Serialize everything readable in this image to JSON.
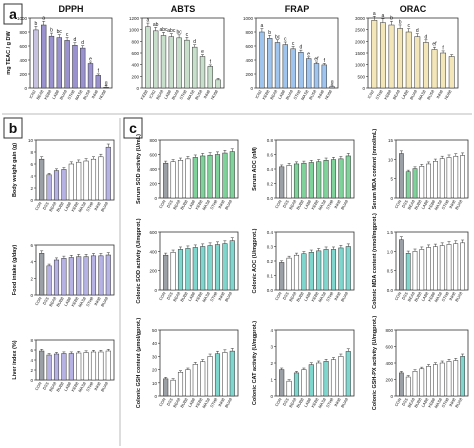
{
  "panel_labels": [
    "a",
    "b",
    "c"
  ],
  "chart_data": [
    {
      "panel": "a",
      "type": "bar",
      "title": "DPPH",
      "ylabel": "mg TEAC / g DW",
      "ylim": [
        0,
        1000
      ],
      "yticks": [
        "1000",
        "800",
        "600",
        "400",
        "200",
        "0"
      ],
      "categories": [
        "ICN2",
        "BEA8",
        "KEB8",
        "LAB8",
        "BUA8",
        "STH8",
        "MAS8",
        "BUS8",
        "INH8",
        "NU68"
      ],
      "values": [
        830,
        900,
        740,
        720,
        680,
        610,
        570,
        350,
        180,
        10
      ],
      "labels": [
        "b",
        "a",
        "b",
        "bc",
        "c",
        "d",
        "d",
        "e",
        "f",
        "g"
      ],
      "colors": [
        "#c7c2e0",
        "#9a92cf",
        "#9a92cf",
        "#9a92cf",
        "#9a92cf",
        "#9a92cf",
        "#9a92cf",
        "#9a92cf",
        "#9a92cf",
        "#9a92cf"
      ]
    },
    {
      "panel": "a",
      "type": "bar",
      "title": "ABTS",
      "ylim": [
        0,
        1200
      ],
      "yticks": [
        "1200",
        "1000",
        "800",
        "600",
        "400",
        "200",
        "0"
      ],
      "categories": [
        "KEB8",
        "ICN2",
        "BEA8",
        "LAB8",
        "BUA8",
        "STH8",
        "MAS8",
        "BUS8",
        "INH8",
        "NU68"
      ],
      "values": [
        1050,
        980,
        900,
        880,
        860,
        820,
        700,
        540,
        370,
        140
      ],
      "labels": [
        "a",
        "ab",
        "abc",
        "abc",
        "bc",
        "c",
        "d",
        "e",
        "f",
        ""
      ],
      "colors": [
        "#c8dfcc",
        "#c8dfcc",
        "#c8dfcc",
        "#c8dfcc",
        "#c8dfcc",
        "#c8dfcc",
        "#c8dfcc",
        "#c8dfcc",
        "#c8dfcc",
        "#c8dfcc"
      ]
    },
    {
      "panel": "a",
      "type": "bar",
      "title": "FRAP",
      "ylim": [
        0,
        1000
      ],
      "yticks": [
        "1000",
        "800",
        "600",
        "400",
        "200",
        "0"
      ],
      "categories": [
        "ICN2",
        "KEB8",
        "BEA8",
        "LAB8",
        "BUA8",
        "STH8",
        "MAS8",
        "BUS8",
        "INH8",
        "NU68"
      ],
      "values": [
        800,
        710,
        650,
        620,
        560,
        510,
        420,
        350,
        330,
        20
      ],
      "labels": [
        "a",
        "b",
        "bc",
        "c",
        "c",
        "d",
        "e",
        "ef",
        "f",
        "g"
      ],
      "colors": [
        "#9fc4ee",
        "#9fc4ee",
        "#9fc4ee",
        "#9fc4ee",
        "#9fc4ee",
        "#9fc4ee",
        "#9fc4ee",
        "#9fc4ee",
        "#9fc4ee",
        "#9fc4ee"
      ]
    },
    {
      "panel": "a",
      "type": "bar",
      "title": "ORAC",
      "ylim": [
        0,
        3000
      ],
      "yticks": [
        "3000",
        "2500",
        "2000",
        "1500",
        "1000",
        "500",
        "0"
      ],
      "categories": [
        "ICN2",
        "STH8",
        "KEB8",
        "BEA8",
        "LAB8",
        "BUA8",
        "MAS8",
        "BUS8",
        "INH8",
        "NU68"
      ],
      "values": [
        2900,
        2800,
        2700,
        2550,
        2400,
        2200,
        1950,
        1650,
        1500,
        1350
      ],
      "labels": [
        "a",
        "a",
        "b",
        "b",
        "c",
        "d",
        "d",
        "ef",
        "f",
        ""
      ],
      "colors": [
        "#f3e6b9",
        "#f3e6b9",
        "#f3e6b9",
        "#f3e6b9",
        "#f3e6b9",
        "#f3e6b9",
        "#f3e6b9",
        "#f3e6b9",
        "#f3e6b9",
        "#f3e6b9"
      ]
    },
    {
      "panel": "b",
      "type": "bar",
      "ylabel": "Body weight gain (g)",
      "ylim": [
        0,
        10
      ],
      "yticks": [
        "10",
        "8",
        "6",
        "4",
        "2",
        "0"
      ],
      "categories": [
        "CON",
        "DSS",
        "BEA8",
        "BUB8",
        "LAB8",
        "KEB8",
        "MAS8",
        "STH8",
        "INH8",
        "BUA8"
      ],
      "values": [
        6.8,
        4.2,
        4.9,
        5.1,
        6.0,
        6.3,
        6.5,
        6.8,
        7.2,
        8.8
      ],
      "colors": [
        "#9aa0a6",
        "#b6b3e4",
        "#b6b3e4",
        "#b6b3e4",
        "#ffffff",
        "#ffffff",
        "#ffffff",
        "#ffffff",
        "#ffffff",
        "#b6b3e4"
      ]
    },
    {
      "panel": "b",
      "type": "bar",
      "ylabel": "Food intake (g/day)",
      "ylim": [
        0,
        6
      ],
      "yticks": [
        "6",
        "4",
        "2",
        "0"
      ],
      "categories": [
        "CON",
        "DSS",
        "BEA8",
        "BUB8",
        "LAB8",
        "KEB8",
        "MAS8",
        "STH8",
        "INH8",
        "BUA8"
      ],
      "values": [
        5.0,
        3.5,
        4.2,
        4.4,
        4.5,
        4.6,
        4.6,
        4.7,
        4.7,
        4.8
      ],
      "colors": [
        "#9aa0a6",
        "#b6b3e4",
        "#b6b3e4",
        "#b6b3e4",
        "#b6b3e4",
        "#b6b3e4",
        "#b6b3e4",
        "#b6b3e4",
        "#b6b3e4",
        "#b6b3e4"
      ]
    },
    {
      "panel": "b",
      "type": "bar",
      "ylabel": "Liver index (%)",
      "ylim": [
        0,
        8
      ],
      "yticks": [
        "8",
        "6",
        "4",
        "2",
        "0"
      ],
      "categories": [
        "CON",
        "DSS",
        "BEA8",
        "BUB8",
        "LAB8",
        "KEB8",
        "MAS8",
        "STH8",
        "INH8",
        "BUA8"
      ],
      "values": [
        5.8,
        5.0,
        5.2,
        5.3,
        5.3,
        5.4,
        5.5,
        5.6,
        5.6,
        5.8
      ],
      "colors": [
        "#9aa0a6",
        "#b6b3e4",
        "#b6b3e4",
        "#b6b3e4",
        "#b6b3e4",
        "#ffffff",
        "#ffffff",
        "#ffffff",
        "#ffffff",
        "#ffffff"
      ]
    },
    {
      "panel": "c",
      "type": "bar",
      "ylabel": "Serum SOD activity (U/mL)",
      "ylim": [
        0,
        800
      ],
      "yticks": [
        "800",
        "600",
        "400",
        "200",
        "0"
      ],
      "categories": [
        "CON",
        "DSS",
        "BEA8",
        "BUB8",
        "LAB8",
        "KEB8",
        "MAS8",
        "STH8",
        "INH8",
        "BUA8"
      ],
      "values": [
        480,
        500,
        520,
        540,
        560,
        580,
        590,
        600,
        620,
        640
      ],
      "colors": [
        "#9aa0a6",
        "#ffffff",
        "#ffffff",
        "#ffffff",
        "#7fd39a",
        "#7fd39a",
        "#7fd39a",
        "#7fd39a",
        "#7fd39a",
        "#7fd39a"
      ]
    },
    {
      "panel": "c",
      "type": "bar",
      "ylabel": "Serum AOC (nM)",
      "ylim": [
        0,
        0.8
      ],
      "yticks": [
        "0.8",
        "0.6",
        "0.4",
        "0.2",
        "0.0"
      ],
      "categories": [
        "CON",
        "DSS",
        "BEA8",
        "BUB8",
        "LAB8",
        "KEB8",
        "MAS8",
        "STH8",
        "INH8",
        "BUA8"
      ],
      "values": [
        0.43,
        0.45,
        0.47,
        0.48,
        0.49,
        0.5,
        0.52,
        0.53,
        0.54,
        0.58
      ],
      "colors": [
        "#9aa0a6",
        "#ffffff",
        "#7fd39a",
        "#7fd39a",
        "#7fd39a",
        "#7fd39a",
        "#7fd39a",
        "#7fd39a",
        "#7fd39a",
        "#7fd39a"
      ]
    },
    {
      "panel": "c",
      "type": "bar",
      "ylabel": "Serum MDA content (nmol/mL)",
      "ylim": [
        0,
        15
      ],
      "yticks": [
        "15",
        "10",
        "5",
        "0"
      ],
      "categories": [
        "CON",
        "DSS",
        "BEA8",
        "BUB8",
        "LAB8",
        "KEB8",
        "MAS8",
        "STH8",
        "INH8",
        "BUA8"
      ],
      "values": [
        11.5,
        6.8,
        7.6,
        8.2,
        8.8,
        9.5,
        10.2,
        10.5,
        10.8,
        11.0
      ],
      "colors": [
        "#9aa0a6",
        "#7fd39a",
        "#7fd39a",
        "#ffffff",
        "#ffffff",
        "#ffffff",
        "#ffffff",
        "#ffffff",
        "#ffffff",
        "#ffffff"
      ]
    },
    {
      "panel": "c",
      "type": "bar",
      "ylabel": "Colonic SOD activity (U/mgprot.)",
      "ylim": [
        0,
        600
      ],
      "yticks": [
        "600",
        "400",
        "200",
        "0"
      ],
      "categories": [
        "CON",
        "DSS",
        "BEA8",
        "BUB8",
        "LAB8",
        "KEB8",
        "MAS8",
        "STH8",
        "INH8",
        "BUA8"
      ],
      "values": [
        360,
        390,
        420,
        430,
        440,
        450,
        460,
        470,
        480,
        510
      ],
      "colors": [
        "#9aa0a6",
        "#ffffff",
        "#7fd6cd",
        "#7fd6cd",
        "#7fd6cd",
        "#7fd6cd",
        "#7fd6cd",
        "#7fd6cd",
        "#7fd6cd",
        "#7fd6cd"
      ]
    },
    {
      "panel": "c",
      "type": "bar",
      "ylabel": "Colonic AOC (U/mgprot.)",
      "ylim": [
        0,
        0.4
      ],
      "yticks": [
        "0.4",
        "0.3",
        "0.2",
        "0.1",
        "0.0"
      ],
      "categories": [
        "CON",
        "DSS",
        "BEA8",
        "BUB8",
        "LAB8",
        "KEB8",
        "MAS8",
        "STH8",
        "INH8",
        "BUA8"
      ],
      "values": [
        0.19,
        0.22,
        0.24,
        0.25,
        0.26,
        0.27,
        0.28,
        0.28,
        0.29,
        0.3
      ],
      "colors": [
        "#9aa0a6",
        "#ffffff",
        "#ffffff",
        "#7fd6cd",
        "#7fd6cd",
        "#7fd6cd",
        "#7fd6cd",
        "#7fd6cd",
        "#7fd6cd",
        "#7fd6cd"
      ]
    },
    {
      "panel": "c",
      "type": "bar",
      "ylabel": "Colonic MDA content (nmol/mgprot.)",
      "ylim": [
        0,
        1.5
      ],
      "yticks": [
        "1.5",
        "1.0",
        "0.5",
        "0.0"
      ],
      "categories": [
        "CON",
        "DSS",
        "BEA8",
        "BUB8",
        "LAB8",
        "KEB8",
        "MAS8",
        "STH8",
        "INH8",
        "BUA8"
      ],
      "values": [
        1.3,
        0.95,
        1.0,
        1.05,
        1.1,
        1.12,
        1.15,
        1.18,
        1.2,
        1.22
      ],
      "colors": [
        "#9aa0a6",
        "#7fd6cd",
        "#ffffff",
        "#ffffff",
        "#ffffff",
        "#ffffff",
        "#ffffff",
        "#ffffff",
        "#ffffff",
        "#ffffff"
      ]
    },
    {
      "panel": "c",
      "type": "bar",
      "ylabel": "Colonic GSH content (μmol/gprot.)",
      "ylim": [
        0,
        50
      ],
      "yticks": [
        "50",
        "40",
        "30",
        "20",
        "10",
        "0"
      ],
      "categories": [
        "CON",
        "DSS",
        "BEA8",
        "BUB8",
        "LAB8",
        "KEB8",
        "MAS8",
        "STH8",
        "INH8",
        "BUA8"
      ],
      "values": [
        13,
        12,
        18,
        20,
        24,
        26,
        30,
        32,
        33,
        34
      ],
      "colors": [
        "#9aa0a6",
        "#ffffff",
        "#ffffff",
        "#ffffff",
        "#ffffff",
        "#ffffff",
        "#ffffff",
        "#7fd6cd",
        "#ffffff",
        "#7fd6cd"
      ]
    },
    {
      "panel": "c",
      "type": "bar",
      "ylabel": "Colonic CAT activity (U/mgprot.)",
      "ylim": [
        0,
        4
      ],
      "yticks": [
        "4",
        "3",
        "2",
        "1",
        "0"
      ],
      "categories": [
        "CON",
        "DSS",
        "BEA8",
        "BUB8",
        "LAB8",
        "KEB8",
        "MAS8",
        "STH8",
        "INH8",
        "BUA8"
      ],
      "values": [
        1.6,
        0.9,
        1.4,
        1.6,
        1.9,
        2.0,
        2.1,
        2.2,
        2.4,
        2.7
      ],
      "colors": [
        "#9aa0a6",
        "#ffffff",
        "#7fd6cd",
        "#ffffff",
        "#7fd6cd",
        "#ffffff",
        "#7fd6cd",
        "#ffffff",
        "#ffffff",
        "#7fd6cd"
      ]
    },
    {
      "panel": "c",
      "type": "bar",
      "ylabel": "Colonic GSH-PX activity (U/mgprot.)",
      "ylim": [
        0,
        800
      ],
      "yticks": [
        "800",
        "600",
        "400",
        "200",
        "0"
      ],
      "categories": [
        "CON",
        "DSS",
        "BEA8",
        "BUB8",
        "LAB8",
        "KEB8",
        "MAS8",
        "STH8",
        "INH8",
        "BUA8"
      ],
      "values": [
        280,
        230,
        300,
        330,
        360,
        380,
        400,
        420,
        430,
        480
      ],
      "colors": [
        "#9aa0a6",
        "#ffffff",
        "#ffffff",
        "#ffffff",
        "#ffffff",
        "#ffffff",
        "#ffffff",
        "#ffffff",
        "#ffffff",
        "#7fd6cd"
      ]
    }
  ]
}
